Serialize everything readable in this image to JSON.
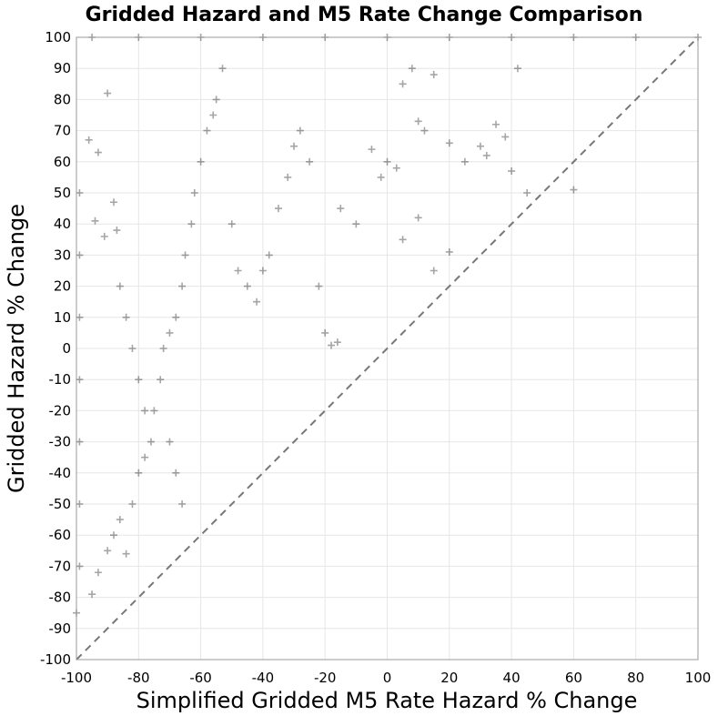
{
  "chart_data": {
    "type": "scatter",
    "title": "Gridded Hazard and M5 Rate Change Comparison",
    "xlabel": "Simplified Gridded M5 Rate Hazard % Change",
    "ylabel": "Gridded Hazard % Change",
    "xlim": [
      -100,
      100
    ],
    "ylim": [
      -100,
      100
    ],
    "x_ticks": [
      "-100",
      "-80",
      "-60",
      "-40",
      "-20",
      "0",
      "20",
      "40",
      "60",
      "80",
      "100"
    ],
    "y_ticks": [
      "100",
      "90",
      "80",
      "70",
      "60",
      "50",
      "40",
      "30",
      "20",
      "10",
      "0",
      "-10",
      "-20",
      "-30",
      "-40",
      "-50",
      "-60",
      "-70",
      "-80",
      "-90",
      "-100"
    ],
    "grid": true,
    "marker": "plus",
    "marker_color": "#000000",
    "reference_line": {
      "style": "dashed",
      "color": "#777777",
      "from": [
        -100,
        -100
      ],
      "to": [
        100,
        100
      ]
    },
    "points": [
      [
        -95,
        -79
      ],
      [
        -93,
        -72
      ],
      [
        -90,
        -65
      ],
      [
        -88,
        -60
      ],
      [
        -86,
        -55
      ],
      [
        -84,
        -66
      ],
      [
        -82,
        -50
      ],
      [
        -80,
        -40
      ],
      [
        -78,
        -35
      ],
      [
        -76,
        -30
      ],
      [
        -75,
        -20
      ],
      [
        -73,
        -10
      ],
      [
        -72,
        0
      ],
      [
        -70,
        5
      ],
      [
        -68,
        10
      ],
      [
        -66,
        20
      ],
      [
        -65,
        30
      ],
      [
        -63,
        40
      ],
      [
        -62,
        50
      ],
      [
        -60,
        60
      ],
      [
        -58,
        70
      ],
      [
        -56,
        75
      ],
      [
        -55,
        80
      ],
      [
        -53,
        90
      ],
      [
        -50,
        40
      ],
      [
        -48,
        25
      ],
      [
        -45,
        20
      ],
      [
        -42,
        15
      ],
      [
        -40,
        25
      ],
      [
        -38,
        30
      ],
      [
        -35,
        45
      ],
      [
        -32,
        55
      ],
      [
        -30,
        65
      ],
      [
        -28,
        70
      ],
      [
        -25,
        60
      ],
      [
        -22,
        20
      ],
      [
        -20,
        5
      ],
      [
        -18,
        1
      ],
      [
        -16,
        2
      ],
      [
        -86,
        20
      ],
      [
        -84,
        10
      ],
      [
        -82,
        0
      ],
      [
        -80,
        -10
      ],
      [
        -78,
        -20
      ],
      [
        -70,
        -30
      ],
      [
        -68,
        -40
      ],
      [
        -66,
        -50
      ],
      [
        -90,
        82
      ],
      [
        -96,
        67
      ],
      [
        -93,
        63
      ],
      [
        -94,
        41
      ],
      [
        -88,
        47
      ],
      [
        -91,
        36
      ],
      [
        -87,
        38
      ],
      [
        -5,
        64
      ],
      [
        -2,
        55
      ],
      [
        0,
        60
      ],
      [
        3,
        58
      ],
      [
        5,
        85
      ],
      [
        8,
        90
      ],
      [
        10,
        73
      ],
      [
        12,
        70
      ],
      [
        15,
        88
      ],
      [
        20,
        66
      ],
      [
        25,
        60
      ],
      [
        30,
        65
      ],
      [
        32,
        62
      ],
      [
        35,
        72
      ],
      [
        38,
        68
      ],
      [
        40,
        57
      ],
      [
        42,
        90
      ],
      [
        45,
        50
      ],
      [
        60,
        51
      ],
      [
        5,
        35
      ],
      [
        10,
        42
      ],
      [
        15,
        25
      ],
      [
        20,
        31
      ],
      [
        -10,
        40
      ],
      [
        -15,
        45
      ],
      [
        -99,
        50
      ],
      [
        -99,
        30
      ],
      [
        -99,
        10
      ],
      [
        -99,
        -10
      ],
      [
        -99,
        -30
      ],
      [
        -99,
        -50
      ],
      [
        -99,
        -70
      ],
      [
        -100,
        -85
      ],
      [
        -95,
        100
      ],
      [
        -80,
        100
      ],
      [
        -60,
        100
      ],
      [
        -40,
        100
      ],
      [
        -20,
        100
      ],
      [
        0,
        100
      ],
      [
        20,
        100
      ],
      [
        40,
        100
      ],
      [
        60,
        100
      ],
      [
        80,
        100
      ],
      [
        100,
        100
      ]
    ]
  }
}
